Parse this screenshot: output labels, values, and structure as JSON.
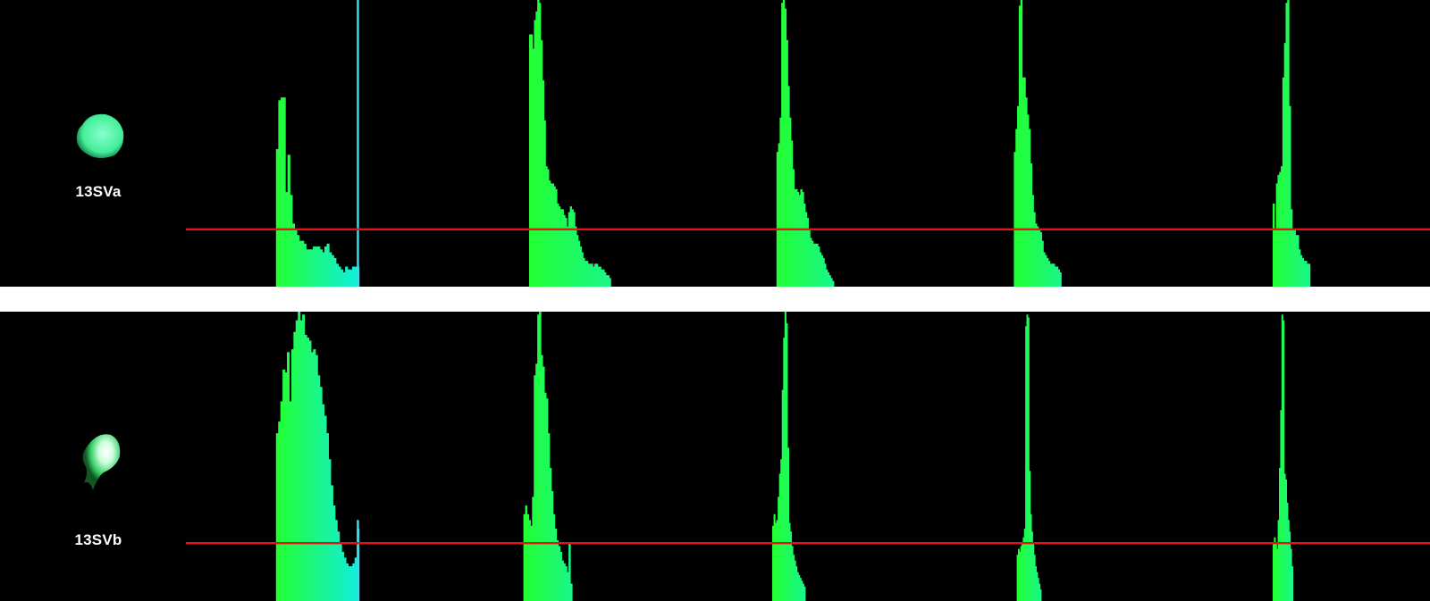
{
  "chart_data": [
    {
      "type": "bar",
      "sample": "13SVa",
      "gradient": {
        "start": "#22ff33",
        "end": "#11eedd"
      },
      "threshold_color": "#ee1111",
      "threshold_level": 0.2,
      "groups": [
        {
          "x_start": 0.193,
          "x_end": 0.251,
          "values": [
            0.48,
            0.65,
            0.66,
            0.66,
            0.33,
            0.46,
            0.32,
            0.22,
            0.2,
            0.18,
            0.16,
            0.16,
            0.15,
            0.13,
            0.13,
            0.13,
            0.14,
            0.14,
            0.14,
            0.13,
            0.12,
            0.14,
            0.15,
            0.12,
            0.11,
            0.1,
            0.08,
            0.07,
            0.06,
            0.05,
            0.07,
            0.06,
            0.06,
            0.07,
            0.07,
            0.07
          ]
        },
        {
          "x_start": 0.37,
          "x_end": 0.427,
          "values": [
            0.88,
            0.88,
            0.83,
            0.93,
            0.96,
            1.0,
            0.99,
            0.86,
            0.72,
            0.58,
            0.42,
            0.41,
            0.37,
            0.36,
            0.36,
            0.35,
            0.34,
            0.29,
            0.28,
            0.27,
            0.27,
            0.25,
            0.24,
            0.21,
            0.26,
            0.28,
            0.27,
            0.26,
            0.21,
            0.18,
            0.16,
            0.14,
            0.12,
            0.1,
            0.09,
            0.09,
            0.08,
            0.08,
            0.08,
            0.07,
            0.08,
            0.08,
            0.07,
            0.07,
            0.06,
            0.06,
            0.05,
            0.04,
            0.04,
            0.03
          ]
        },
        {
          "x_start": 0.543,
          "x_end": 0.583,
          "values": [
            0.47,
            0.5,
            0.59,
            0.99,
            1.0,
            0.97,
            0.86,
            0.7,
            0.59,
            0.51,
            0.41,
            0.34,
            0.34,
            0.33,
            0.32,
            0.34,
            0.33,
            0.29,
            0.26,
            0.24,
            0.2,
            0.17,
            0.16,
            0.15,
            0.15,
            0.15,
            0.14,
            0.12,
            0.11,
            0.1,
            0.08,
            0.06,
            0.05,
            0.04,
            0.03,
            0.02
          ]
        },
        {
          "x_start": 0.709,
          "x_end": 0.742,
          "values": [
            0.47,
            0.55,
            0.63,
            0.98,
            1.0,
            0.73,
            0.73,
            0.66,
            0.6,
            0.55,
            0.43,
            0.32,
            0.26,
            0.22,
            0.21,
            0.2,
            0.19,
            0.16,
            0.12,
            0.11,
            0.1,
            0.09,
            0.08,
            0.08,
            0.08,
            0.07,
            0.07,
            0.06,
            0.05
          ]
        },
        {
          "x_start": 0.89,
          "x_end": 0.916,
          "values": [
            0.29,
            0.2,
            0.36,
            0.39,
            0.4,
            0.42,
            0.73,
            0.85,
            0.99,
            1.0,
            0.63,
            0.27,
            0.2,
            0.2,
            0.18,
            0.18,
            0.13,
            0.11,
            0.1,
            0.09,
            0.09,
            0.08,
            0.08
          ]
        }
      ],
      "marker": {
        "x": 0.2495,
        "color": "#33ddee"
      }
    },
    {
      "type": "bar",
      "sample": "13SVb",
      "gradient": {
        "start": "#22ff33",
        "end": "#11eedd"
      },
      "threshold_color": "#ee1111",
      "threshold_level": 0.2,
      "groups": [
        {
          "x_start": 0.193,
          "x_end": 0.251,
          "values": [
            0.58,
            0.62,
            0.69,
            0.8,
            0.79,
            0.86,
            0.69,
            0.87,
            0.93,
            0.97,
            1.0,
            0.97,
            0.99,
            0.92,
            0.91,
            0.9,
            0.86,
            0.87,
            0.85,
            0.78,
            0.74,
            0.68,
            0.64,
            0.58,
            0.49,
            0.4,
            0.33,
            0.28,
            0.24,
            0.2,
            0.17,
            0.15,
            0.13,
            0.12,
            0.12,
            0.13,
            0.15,
            0.25
          ]
        },
        {
          "x_start": 0.366,
          "x_end": 0.4,
          "values": [
            0.3,
            0.33,
            0.3,
            0.28,
            0.26,
            0.36,
            0.78,
            0.82,
            0.99,
            1.0,
            0.85,
            0.81,
            0.72,
            0.7,
            0.58,
            0.46,
            0.38,
            0.3,
            0.25,
            0.21,
            0.19,
            0.17,
            0.14,
            0.13,
            0.12,
            0.1,
            0.2,
            0.06
          ]
        },
        {
          "x_start": 0.54,
          "x_end": 0.563,
          "values": [
            0.26,
            0.3,
            0.27,
            0.28,
            0.36,
            0.44,
            0.49,
            0.73,
            0.91,
            1.0,
            0.96,
            0.53,
            0.27,
            0.24,
            0.19,
            0.16,
            0.14,
            0.12,
            0.1,
            0.09,
            0.08,
            0.07,
            0.06,
            0.05
          ]
        },
        {
          "x_start": 0.711,
          "x_end": 0.728,
          "values": [
            0.16,
            0.18,
            0.17,
            0.19,
            0.2,
            0.22,
            0.25,
            0.95,
            0.99,
            0.98,
            0.45,
            0.3,
            0.24,
            0.2,
            0.16,
            0.12,
            0.1,
            0.08,
            0.06,
            0.04
          ]
        },
        {
          "x_start": 0.89,
          "x_end": 0.904,
          "values": [
            0.2,
            0.22,
            0.2,
            0.18,
            0.28,
            0.46,
            0.66,
            0.99,
            0.97,
            0.44,
            0.42,
            0.34,
            0.28,
            0.24,
            0.18,
            0.12
          ]
        }
      ],
      "marker": {
        "x": 0.2495,
        "color": "#33ddee",
        "height": 0.28
      }
    }
  ],
  "blob_color": "#44ee99"
}
